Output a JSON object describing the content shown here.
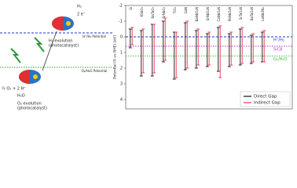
{
  "diagram": {
    "h2": "H₂",
    "two_e": "2 e⁻",
    "h_potential": "H⁺/H₂ Potential",
    "h2_evolution": "H₂ evolution",
    "h2_photocat": "(photocatalyst)",
    "o_potential": "O₂/H₂O Potential",
    "half_o2": "½ O₂ + 2 H⁺",
    "h2o": "H₂O",
    "o2_evolution": "O₂ evolution",
    "o2_photocat": "(photocatalyst)"
  },
  "chart_data": {
    "type": "range-bar",
    "ylabel": "Potential (V vs NHE) [eV]",
    "categories": [
      "Si",
      "KSbO₃",
      "NaTaO₃",
      "SrNbO₃",
      "TiO₂",
      "GaN",
      "BaNbO₂N",
      "SrNbO₂N",
      "CaNbO₂N",
      "PbNbO₂N",
      "SrTaO₂N",
      "BaTaO₂N",
      "LaNbON₂"
    ],
    "series": [
      {
        "name": "Direct Gap",
        "color": "#111111",
        "cbm": [
          -0.5,
          -0.4,
          -0.8,
          -1.0,
          -0.3,
          -0.9,
          -0.4,
          -0.2,
          -0.6,
          -0.2,
          -0.5,
          -0.1,
          -0.3
        ],
        "vbm": [
          0.7,
          2.5,
          2.5,
          1.6,
          2.7,
          2.1,
          2.0,
          1.9,
          2.2,
          1.9,
          1.8,
          1.7,
          1.6
        ]
      },
      {
        "name": "Indirect Gap",
        "color": "#e8354f",
        "cbm": [
          -0.6,
          -0.5,
          -0.8,
          -1.2,
          -0.3,
          -1.0,
          -0.5,
          -0.3,
          -0.7,
          -0.3,
          -0.6,
          -0.2,
          -0.4
        ],
        "vbm": [
          0.5,
          2.3,
          2.3,
          1.5,
          2.6,
          2.0,
          1.8,
          1.8,
          2.6,
          1.8,
          1.7,
          1.6,
          1.6
        ]
      }
    ],
    "reference_lines": [
      {
        "label": "H⁺/H₂",
        "value": 0,
        "color": "#2233cc"
      },
      {
        "label": "SiCB",
        "value": 0.6,
        "color": "#c233c2"
      },
      {
        "label": "O₂/H₂O",
        "value": 1.23,
        "color": "#33bb33"
      }
    ],
    "ylim": [
      -2,
      4.6
    ],
    "yticks": [
      -2,
      -1,
      0,
      1,
      2,
      3,
      4
    ],
    "y_inverted": true,
    "legend": "lower right"
  }
}
